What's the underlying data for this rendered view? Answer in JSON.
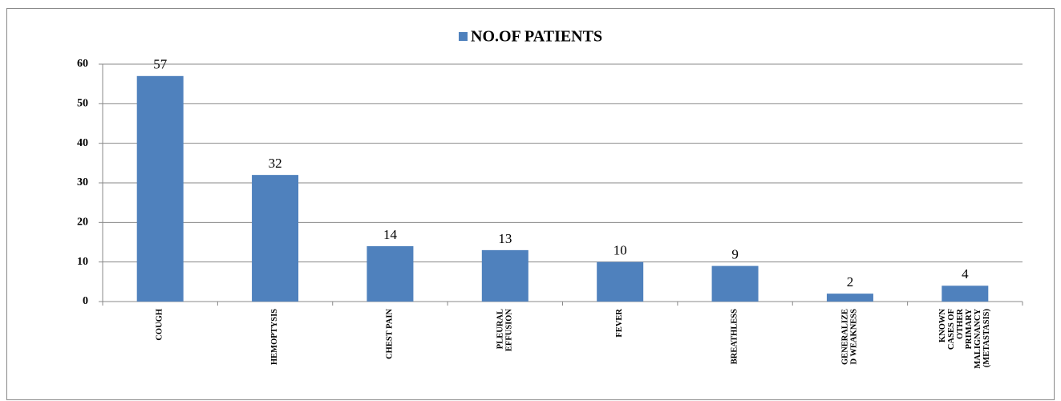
{
  "chart_data": {
    "type": "bar",
    "categories": [
      "COUGH",
      "HEMOPTYSIS",
      "CHEST PAIN",
      "PLEURAL EFFUSION",
      "FEVER",
      "BREATHLESS",
      "GENERALIZE D WEAKNESS",
      "KNOWN CASES OF OTHER PRIMARY MALIGNANCY (METASTASIS)"
    ],
    "series": [
      {
        "name": "NO.OF PATIENTS",
        "color": "#4f81bd",
        "values": [
          57,
          32,
          14,
          13,
          10,
          9,
          2,
          4
        ]
      }
    ],
    "ylim": [
      0,
      60
    ],
    "yticks": [
      0,
      10,
      20,
      30,
      40,
      50,
      60
    ],
    "grid": true,
    "legend": "top"
  }
}
